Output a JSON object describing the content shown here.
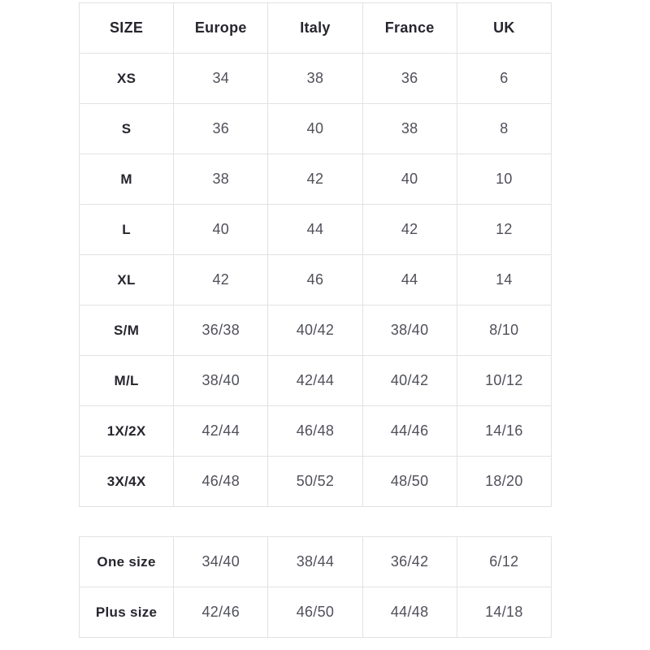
{
  "chart_data": [
    {
      "type": "table",
      "columns": [
        "SIZE",
        "Europe",
        "Italy",
        "France",
        "UK"
      ],
      "rows": [
        [
          "XS",
          "34",
          "38",
          "36",
          "6"
        ],
        [
          "S",
          "36",
          "40",
          "38",
          "8"
        ],
        [
          "M",
          "38",
          "42",
          "40",
          "10"
        ],
        [
          "L",
          "40",
          "44",
          "42",
          "12"
        ],
        [
          "XL",
          "42",
          "46",
          "44",
          "14"
        ],
        [
          "S/M",
          "36/38",
          "40/42",
          "38/40",
          "8/10"
        ],
        [
          "M/L",
          "38/40",
          "42/44",
          "40/42",
          "10/12"
        ],
        [
          "1X/2X",
          "42/44",
          "46/48",
          "44/46",
          "14/16"
        ],
        [
          "3X/4X",
          "46/48",
          "50/52",
          "48/50",
          "18/20"
        ]
      ]
    },
    {
      "type": "table",
      "columns": [],
      "rows": [
        [
          "One size",
          "34/40",
          "38/44",
          "36/42",
          "6/12"
        ],
        [
          "Plus size",
          "42/46",
          "46/50",
          "44/48",
          "14/18"
        ]
      ]
    }
  ],
  "colors": {
    "border": "#e2e2e4",
    "header_text": "#26262e",
    "value_text": "#50505a",
    "background": "#ffffff"
  }
}
